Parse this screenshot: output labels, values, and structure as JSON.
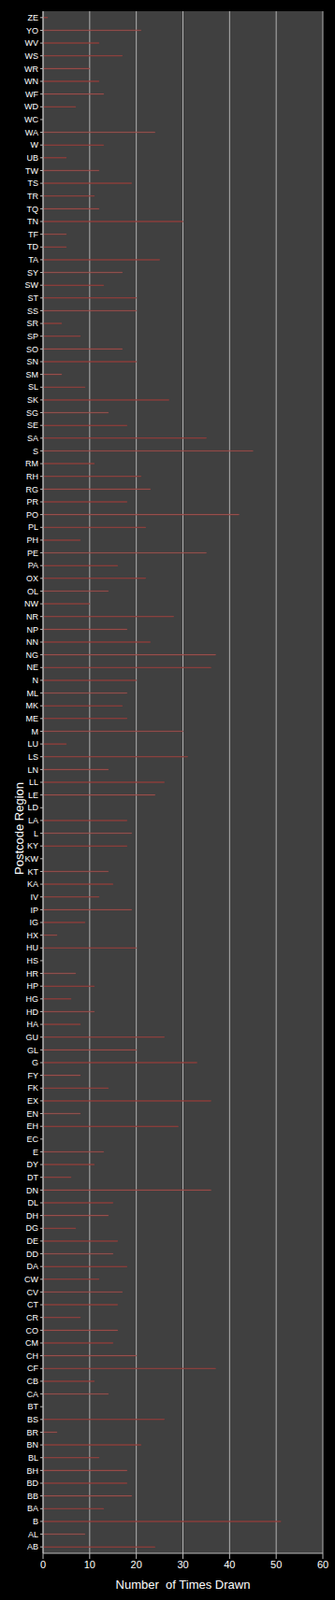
{
  "chart_data": {
    "type": "bar",
    "orientation": "horizontal",
    "x_label": "Number  of Times Drawn",
    "y_label": "Postcode Region",
    "categories": [
      "ZE",
      "YO",
      "WV",
      "WS",
      "WR",
      "WN",
      "WF",
      "WD",
      "WC",
      "WA",
      "W",
      "UB",
      "TW",
      "TS",
      "TR",
      "TQ",
      "TN",
      "TF",
      "TD",
      "TA",
      "SY",
      "SW",
      "ST",
      "SS",
      "SR",
      "SP",
      "SO",
      "SN",
      "SM",
      "SL",
      "SK",
      "SG",
      "SE",
      "SA",
      "S",
      "RM",
      "RH",
      "RG",
      "PR",
      "PO",
      "PL",
      "PH",
      "PE",
      "PA",
      "OX",
      "OL",
      "NW",
      "NR",
      "NP",
      "NN",
      "NG",
      "NE",
      "N",
      "ML",
      "MK",
      "ME",
      "M",
      "LU",
      "LS",
      "LN",
      "LL",
      "LE",
      "LD",
      "LA",
      "L",
      "KY",
      "KW",
      "KT",
      "KA",
      "IV",
      "IP",
      "IG",
      "HX",
      "HU",
      "HS",
      "HR",
      "HP",
      "HG",
      "HD",
      "HA",
      "GU",
      "GL",
      "G",
      "FY",
      "FK",
      "EX",
      "EN",
      "EH",
      "EC",
      "E",
      "DY",
      "DT",
      "DN",
      "DL",
      "DH",
      "DG",
      "DE",
      "DD",
      "DA",
      "CW",
      "CV",
      "CT",
      "CR",
      "CO",
      "CM",
      "CH",
      "CF",
      "CB",
      "CA",
      "BT",
      "BS",
      "BR",
      "BN",
      "BL",
      "BH",
      "BD",
      "BB",
      "BA",
      "B",
      "AL",
      "AB"
    ],
    "values": [
      1,
      21,
      12,
      17,
      10,
      12,
      13,
      7,
      0,
      24,
      13,
      5,
      12,
      19,
      11,
      12,
      30,
      5,
      5,
      25,
      17,
      13,
      20,
      20,
      4,
      8,
      17,
      20,
      4,
      9,
      27,
      14,
      18,
      35,
      45,
      11,
      21,
      23,
      18,
      42,
      22,
      8,
      35,
      16,
      22,
      14,
      10,
      28,
      18,
      23,
      37,
      36,
      20,
      18,
      17,
      18,
      30,
      5,
      31,
      14,
      26,
      24,
      0,
      18,
      19,
      18,
      0,
      14,
      15,
      12,
      19,
      9,
      3,
      20,
      0,
      7,
      11,
      6,
      11,
      8,
      26,
      20,
      33,
      8,
      14,
      36,
      8,
      29,
      0,
      13,
      11,
      6,
      36,
      15,
      14,
      7,
      16,
      15,
      18,
      12,
      17,
      16,
      8,
      16,
      15,
      20,
      37,
      11,
      14,
      0,
      26,
      3,
      21,
      12,
      18,
      18,
      19,
      13,
      51,
      9,
      24
    ],
    "color": "#c0504d",
    "xlim": [
      0,
      60
    ],
    "xticks": [
      0,
      10,
      20,
      30,
      40,
      50,
      60
    ],
    "grid": true
  }
}
